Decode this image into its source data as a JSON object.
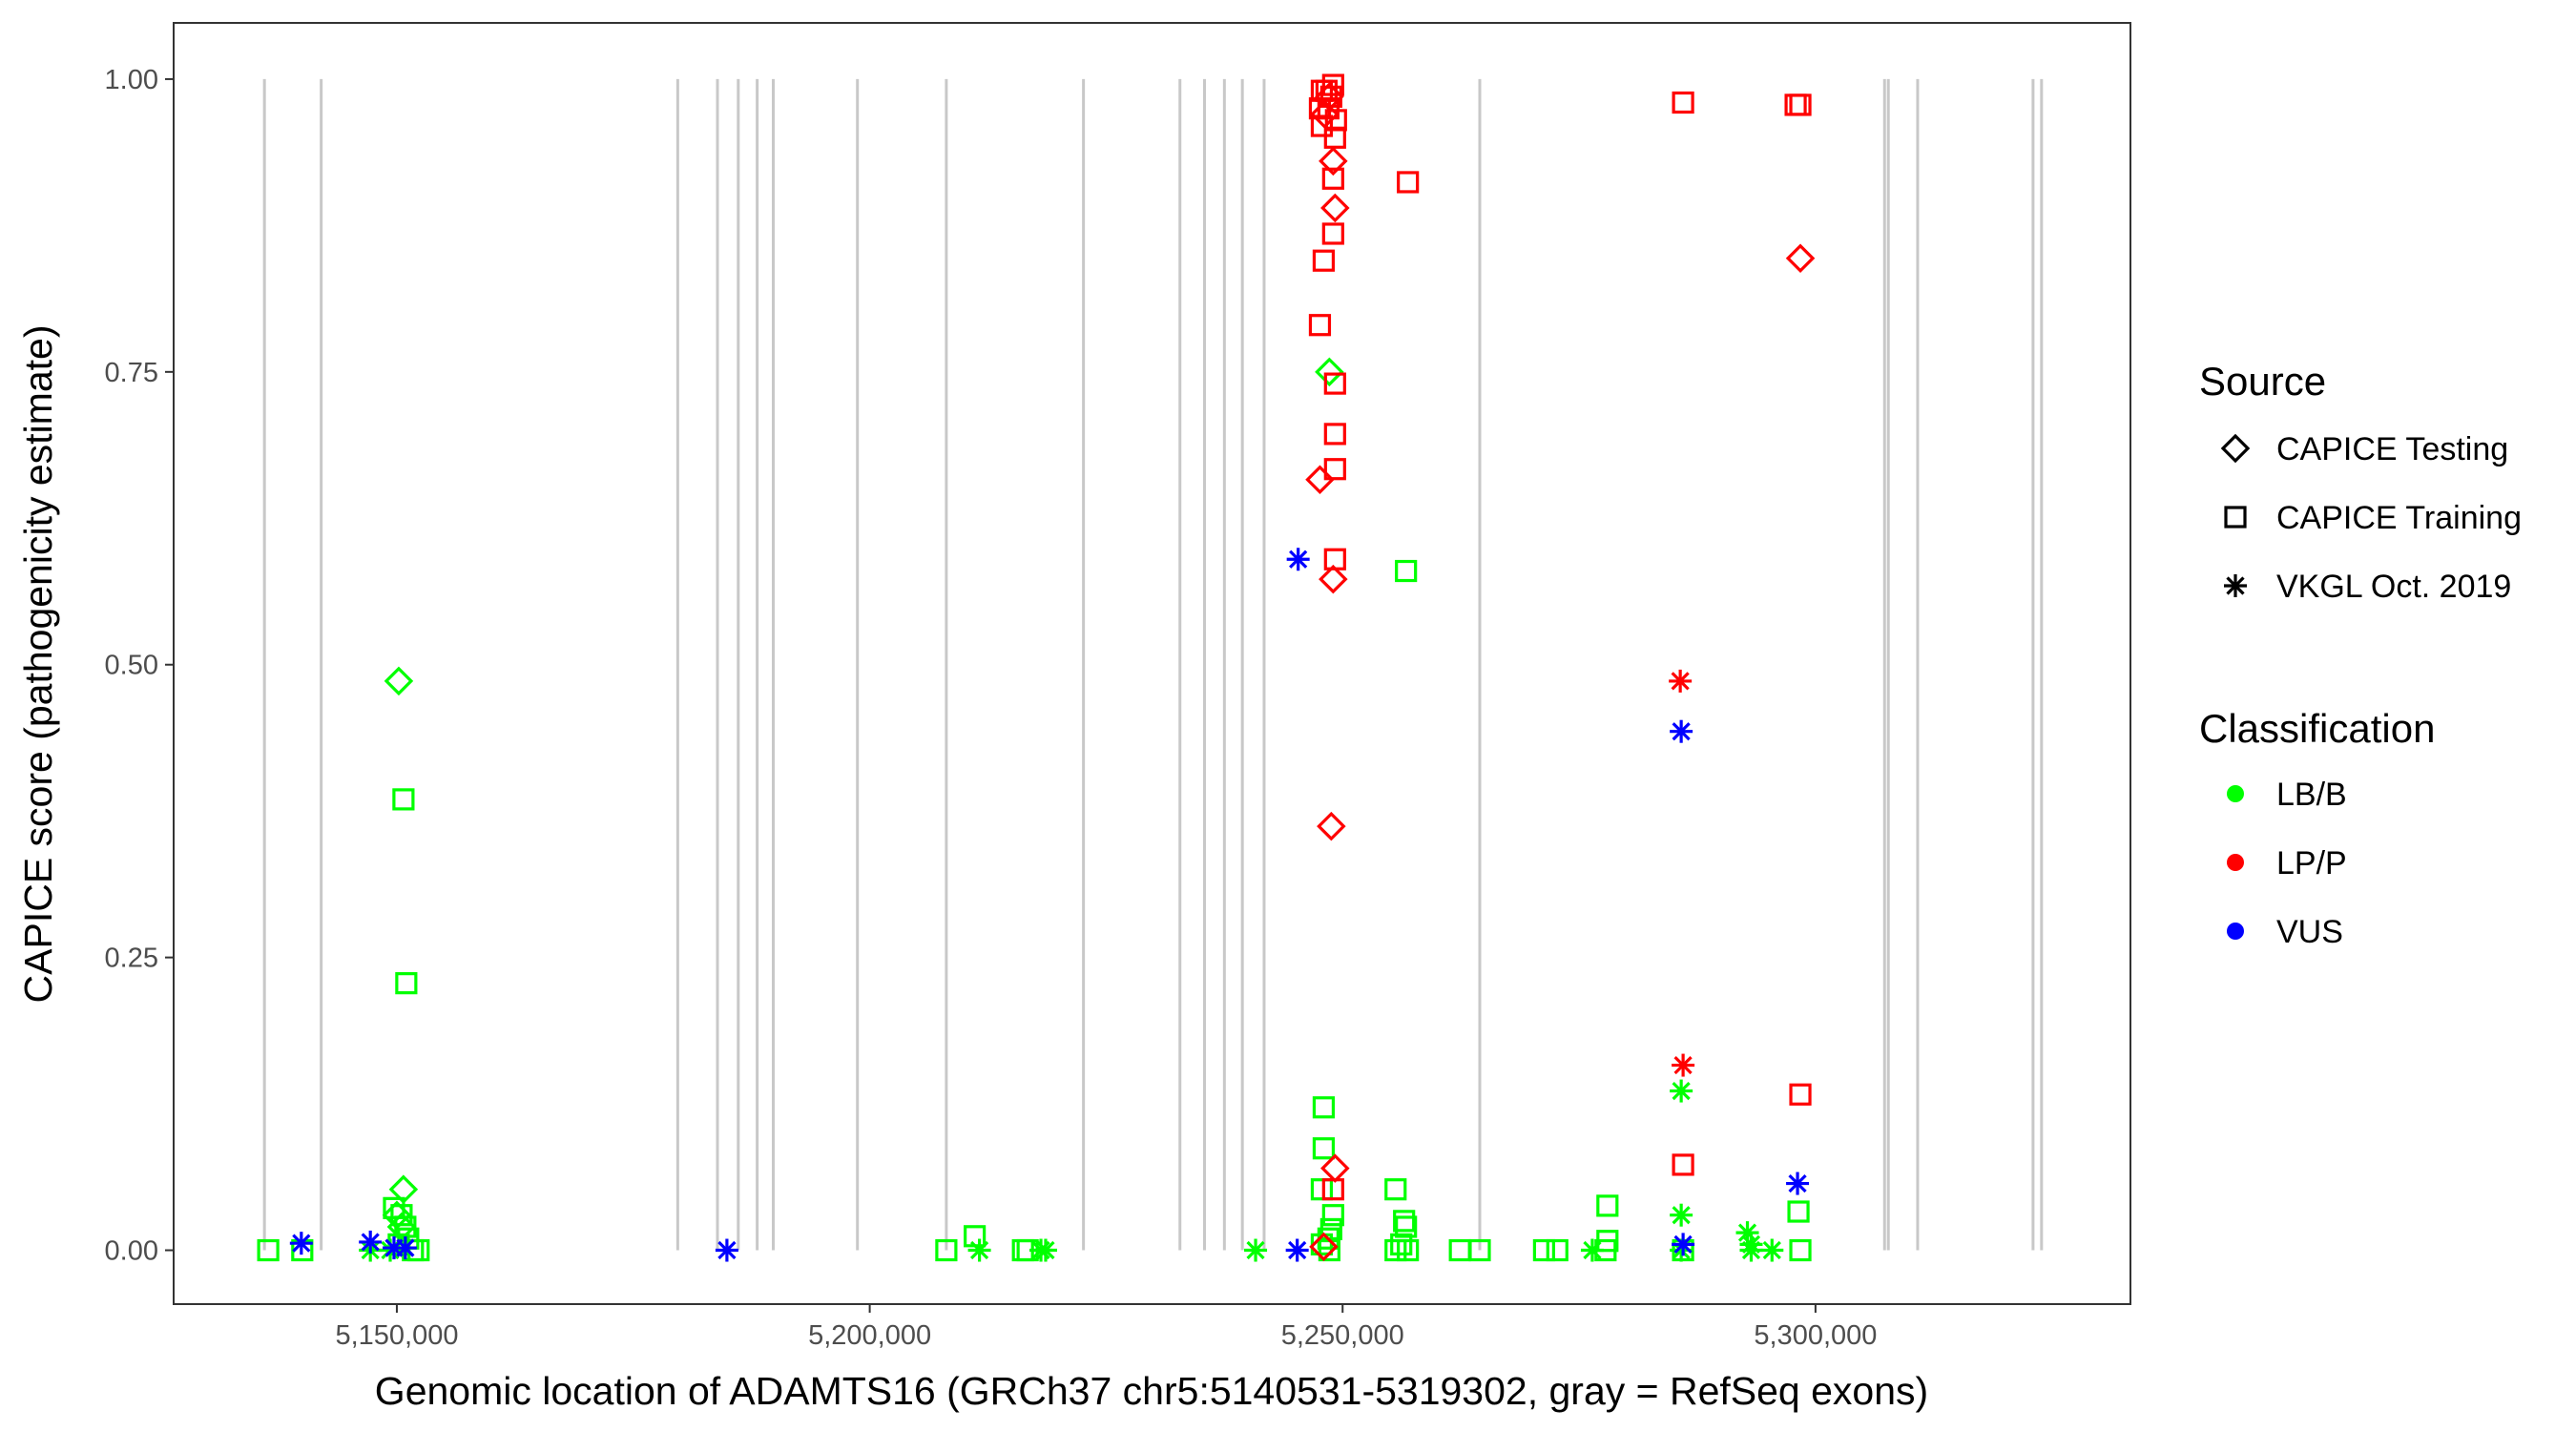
{
  "chart_data": {
    "type": "scatter",
    "xlabel": "Genomic location of ADAMTS16 (GRCh37 chr5:5140531-5319302, gray = RefSeq exons)",
    "ylabel": "CAPICE score (pathogenicity estimate)",
    "x_units": "kb",
    "xlim": [
      5126.4,
      5333.3
    ],
    "ylim": [
      -0.046,
      1.048
    ],
    "grid": false,
    "x_ticks": [
      {
        "value": 5150,
        "label": "5,150,000"
      },
      {
        "value": 5200,
        "label": "5,200,000"
      },
      {
        "value": 5250,
        "label": "5,250,000"
      },
      {
        "value": 5300,
        "label": "5,300,000"
      }
    ],
    "y_ticks": [
      {
        "value": 0,
        "label": "0.00"
      },
      {
        "value": 0.25,
        "label": "0.25"
      },
      {
        "value": 0.5,
        "label": "0.50"
      },
      {
        "value": 0.75,
        "label": "0.75"
      },
      {
        "value": 1,
        "label": "1.00"
      }
    ],
    "exons_kb": [
      5136.0,
      5142.0,
      5179.7,
      5183.9,
      5186.1,
      5188.1,
      5189.8,
      5198.7,
      5208.1,
      5222.6,
      5232.8,
      5235.4,
      5237.5,
      5239.4,
      5241.7,
      5264.5,
      5307.3,
      5307.7,
      5310.8,
      5323.0,
      5323.9
    ],
    "exon_color": "#c8c8c8",
    "legend": {
      "placement": "right",
      "source_title": "Source",
      "sources": [
        {
          "key": "testing",
          "label": "CAPICE Testing",
          "shape": "diamond"
        },
        {
          "key": "training",
          "label": "CAPICE Training",
          "shape": "square"
        },
        {
          "key": "vkgl",
          "label": "VKGL Oct. 2019",
          "shape": "asterisk"
        }
      ],
      "class_title": "Classification",
      "classes": [
        {
          "key": "LB/B",
          "label": "LB/B",
          "color": "#00ff00"
        },
        {
          "key": "LP/P",
          "label": "LP/P",
          "color": "#ff0000"
        },
        {
          "key": "VUS",
          "label": "VUS",
          "color": "#0000ff"
        }
      ]
    },
    "points": [
      [
        5136.4,
        0,
        "training",
        "LB/B"
      ],
      [
        5140.0,
        0,
        "training",
        "LB/B"
      ],
      [
        5208.1,
        0,
        "training",
        "LB/B"
      ],
      [
        5211.1,
        0.012,
        "training",
        "LB/B"
      ],
      [
        5216.2,
        0,
        "training",
        "LB/B"
      ],
      [
        5216.7,
        0,
        "training",
        "LB/B"
      ],
      [
        5150.7,
        0.385,
        "training",
        "LB/B"
      ],
      [
        5151.0,
        0.228,
        "training",
        "LB/B"
      ],
      [
        5149.7,
        0.036,
        "training",
        "LB/B"
      ],
      [
        5150.5,
        0.03,
        "training",
        "LB/B"
      ],
      [
        5150.9,
        0.02,
        "training",
        "LB/B"
      ],
      [
        5151.2,
        0.01,
        "training",
        "LB/B"
      ],
      [
        5151.7,
        0,
        "training",
        "LB/B"
      ],
      [
        5152.3,
        0,
        "training",
        "LB/B"
      ],
      [
        5150.2,
        0.005,
        "training",
        "LB/B"
      ],
      [
        5248.0,
        0.122,
        "training",
        "LB/B"
      ],
      [
        5248.0,
        0.087,
        "training",
        "LB/B"
      ],
      [
        5247.8,
        0.052,
        "training",
        "LB/B"
      ],
      [
        5249.0,
        0.03,
        "training",
        "LB/B"
      ],
      [
        5248.8,
        0.018,
        "training",
        "LB/B"
      ],
      [
        5248.5,
        0.01,
        "training",
        "LB/B"
      ],
      [
        5247.8,
        0.005,
        "training",
        "LB/B"
      ],
      [
        5248.6,
        0,
        "training",
        "LB/B"
      ],
      [
        5255.6,
        0.052,
        "training",
        "LB/B"
      ],
      [
        5256.5,
        0.025,
        "training",
        "LB/B"
      ],
      [
        5256.7,
        0.02,
        "training",
        "LB/B"
      ],
      [
        5256.2,
        0.005,
        "training",
        "LB/B"
      ],
      [
        5256.9,
        0,
        "training",
        "LB/B"
      ],
      [
        5255.6,
        0,
        "training",
        "LB/B"
      ],
      [
        5262.4,
        0,
        "training",
        "LB/B"
      ],
      [
        5264.5,
        0,
        "training",
        "LB/B"
      ],
      [
        5271.3,
        0,
        "training",
        "LB/B"
      ],
      [
        5272.7,
        0,
        "training",
        "LB/B"
      ],
      [
        5278.0,
        0.038,
        "training",
        "LB/B"
      ],
      [
        5278.0,
        0.008,
        "training",
        "LB/B"
      ],
      [
        5277.8,
        0,
        "training",
        "LB/B"
      ],
      [
        5298.2,
        0.033,
        "training",
        "LB/B"
      ],
      [
        5298.4,
        0,
        "training",
        "LB/B"
      ],
      [
        5286.0,
        0,
        "training",
        "LB/B"
      ],
      [
        5256.7,
        0.58,
        "training",
        "LB/B"
      ],
      [
        5150.2,
        0.486,
        "testing",
        "LB/B"
      ],
      [
        5150.7,
        0.052,
        "testing",
        "LB/B"
      ],
      [
        5150.0,
        0.03,
        "testing",
        "LB/B"
      ],
      [
        5150.5,
        0.02,
        "testing",
        "LB/B"
      ],
      [
        5248.6,
        0.75,
        "testing",
        "LB/B"
      ],
      [
        5147.2,
        0,
        "vkgl",
        "LB/B"
      ],
      [
        5149.3,
        0,
        "vkgl",
        "LB/B"
      ],
      [
        5211.6,
        0,
        "vkgl",
        "LB/B"
      ],
      [
        5218.1,
        0,
        "vkgl",
        "LB/B"
      ],
      [
        5218.6,
        0,
        "vkgl",
        "LB/B"
      ],
      [
        5240.8,
        0,
        "vkgl",
        "LB/B"
      ],
      [
        5276.4,
        0,
        "vkgl",
        "LB/B"
      ],
      [
        5285.8,
        0.136,
        "vkgl",
        "LB/B"
      ],
      [
        5285.8,
        0.03,
        "vkgl",
        "LB/B"
      ],
      [
        5285.8,
        0,
        "vkgl",
        "LB/B"
      ],
      [
        5292.8,
        0.015,
        "vkgl",
        "LB/B"
      ],
      [
        5293.2,
        0.005,
        "vkgl",
        "LB/B"
      ],
      [
        5293.2,
        0,
        "vkgl",
        "LB/B"
      ],
      [
        5295.4,
        0,
        "vkgl",
        "LB/B"
      ],
      [
        5247.6,
        0.79,
        "training",
        "LP/P"
      ],
      [
        5248.0,
        0.845,
        "training",
        "LP/P"
      ],
      [
        5249.0,
        0.868,
        "training",
        "LP/P"
      ],
      [
        5249.2,
        0.74,
        "training",
        "LP/P"
      ],
      [
        5249.2,
        0.697,
        "training",
        "LP/P"
      ],
      [
        5249.2,
        0.667,
        "training",
        "LP/P"
      ],
      [
        5249.2,
        0.59,
        "training",
        "LP/P"
      ],
      [
        5256.9,
        0.912,
        "training",
        "LP/P"
      ],
      [
        5286.0,
        0.98,
        "training",
        "LP/P"
      ],
      [
        5297.9,
        0.978,
        "training",
        "LP/P"
      ],
      [
        5298.4,
        0.978,
        "training",
        "LP/P"
      ],
      [
        5298.4,
        0.133,
        "training",
        "LP/P"
      ],
      [
        5286.0,
        0.073,
        "training",
        "LP/P"
      ],
      [
        5249.0,
        0.052,
        "training",
        "LP/P"
      ],
      [
        5247.8,
        0.96,
        "training",
        "LP/P"
      ],
      [
        5248.5,
        0.975,
        "training",
        "LP/P"
      ],
      [
        5249.0,
        0.995,
        "training",
        "LP/P"
      ],
      [
        5248.8,
        0.985,
        "training",
        "LP/P"
      ],
      [
        5248.3,
        0.99,
        "training",
        "LP/P"
      ],
      [
        5247.8,
        0.99,
        "training",
        "LP/P"
      ],
      [
        5247.6,
        0.975,
        "training",
        "LP/P"
      ],
      [
        5249.3,
        0.965,
        "training",
        "LP/P"
      ],
      [
        5249.2,
        0.95,
        "training",
        "LP/P"
      ],
      [
        5249.0,
        0.915,
        "training",
        "LP/P"
      ],
      [
        5249.0,
        0.93,
        "testing",
        "LP/P"
      ],
      [
        5249.2,
        0.89,
        "testing",
        "LP/P"
      ],
      [
        5247.6,
        0.658,
        "testing",
        "LP/P"
      ],
      [
        5249.0,
        0.573,
        "testing",
        "LP/P"
      ],
      [
        5248.8,
        0.362,
        "testing",
        "LP/P"
      ],
      [
        5249.2,
        0.07,
        "testing",
        "LP/P"
      ],
      [
        5248.0,
        0.003,
        "testing",
        "LP/P"
      ],
      [
        5298.4,
        0.847,
        "testing",
        "LP/P"
      ],
      [
        5248.6,
        0.985,
        "testing",
        "LP/P"
      ],
      [
        5248.1,
        0.97,
        "testing",
        "LP/P"
      ],
      [
        5285.7,
        0.486,
        "vkgl",
        "LP/P"
      ],
      [
        5286.0,
        0.158,
        "vkgl",
        "LP/P"
      ],
      [
        5139.9,
        0.006,
        "vkgl",
        "VUS"
      ],
      [
        5147.2,
        0.007,
        "vkgl",
        "VUS"
      ],
      [
        5149.7,
        0.002,
        "vkgl",
        "VUS"
      ],
      [
        5150.9,
        0.002,
        "vkgl",
        "VUS"
      ],
      [
        5184.9,
        0,
        "vkgl",
        "VUS"
      ],
      [
        5245.2,
        0,
        "vkgl",
        "VUS"
      ],
      [
        5245.3,
        0.59,
        "vkgl",
        "VUS"
      ],
      [
        5285.8,
        0.443,
        "vkgl",
        "VUS"
      ],
      [
        5286.0,
        0.005,
        "vkgl",
        "VUS"
      ],
      [
        5298.1,
        0.057,
        "vkgl",
        "VUS"
      ]
    ]
  }
}
